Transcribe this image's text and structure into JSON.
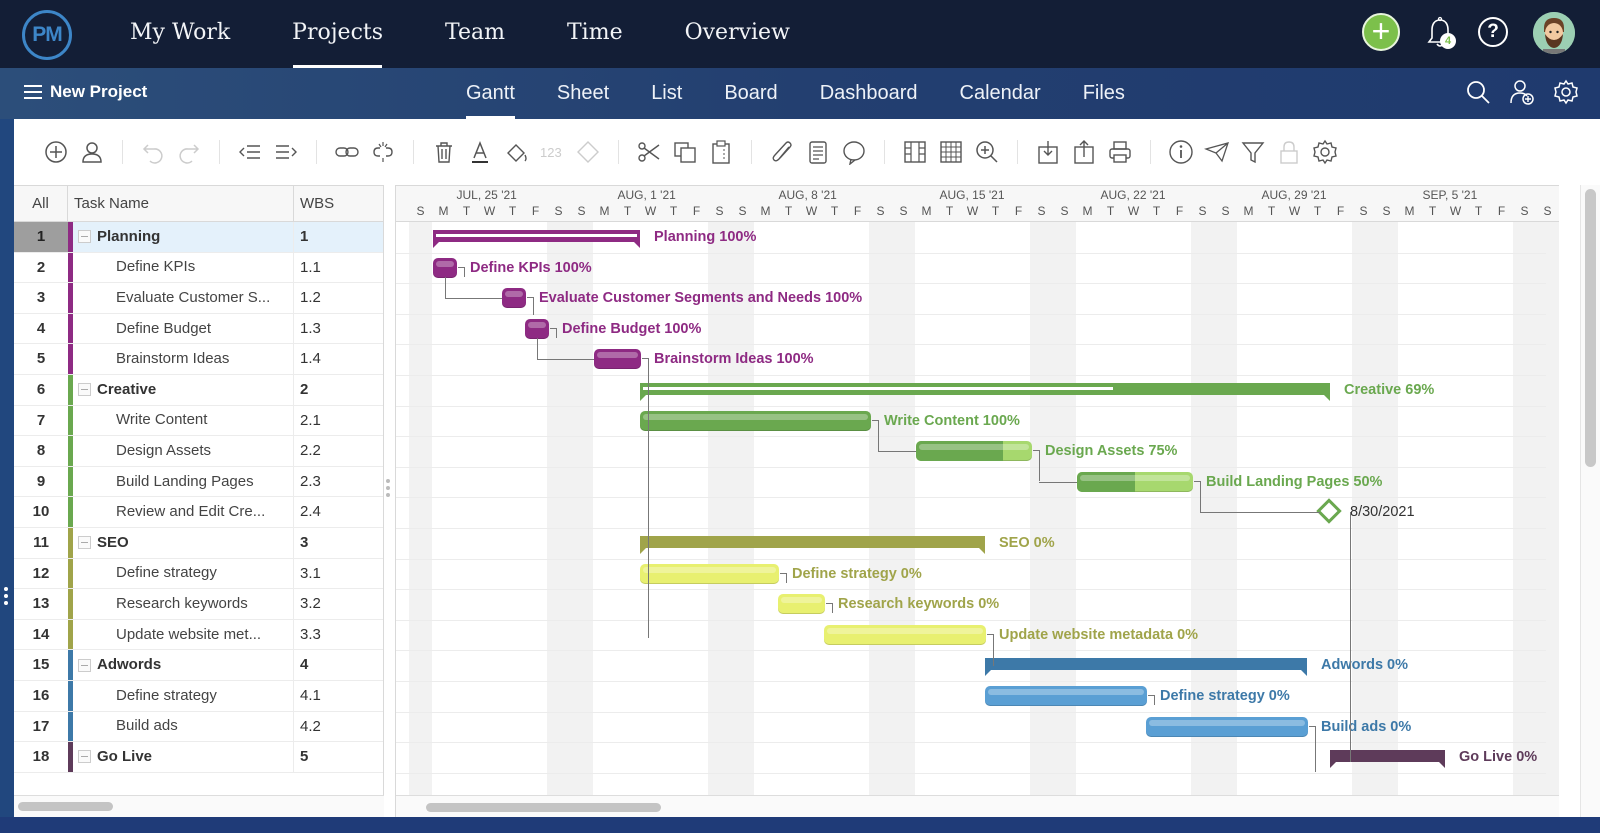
{
  "app": {
    "logo_text": "PM",
    "top_nav": [
      {
        "label": "My Work",
        "active": false
      },
      {
        "label": "Projects",
        "active": true
      },
      {
        "label": "Team",
        "active": false
      },
      {
        "label": "Time",
        "active": false
      },
      {
        "label": "Overview",
        "active": false
      }
    ],
    "notifications_count": "4",
    "help_label": "?",
    "add_label": "+"
  },
  "project": {
    "title": "New Project",
    "view_tabs": [
      {
        "label": "Gantt",
        "active": true
      },
      {
        "label": "Sheet",
        "active": false
      },
      {
        "label": "List",
        "active": false
      },
      {
        "label": "Board",
        "active": false
      },
      {
        "label": "Dashboard",
        "active": false
      },
      {
        "label": "Calendar",
        "active": false
      },
      {
        "label": "Files",
        "active": false
      }
    ],
    "right_icons": [
      "search-icon",
      "add-user-icon",
      "settings-icon"
    ]
  },
  "toolbar": {
    "groups": [
      [
        "add-task-icon",
        "assign-user-icon"
      ],
      [
        "undo-icon",
        "redo-icon"
      ],
      [
        "outdent-icon",
        "indent-icon"
      ],
      [
        "link-icon",
        "unlink-icon"
      ],
      [
        "delete-icon",
        "font-color-icon",
        "fill-color-icon",
        "numbering-icon",
        "milestone-icon"
      ],
      [
        "cut-icon",
        "copy-icon",
        "paste-icon"
      ],
      [
        "attachment-icon",
        "notes-icon",
        "comment-icon"
      ],
      [
        "columns-icon",
        "grid-icon",
        "zoom-icon"
      ],
      [
        "import-icon",
        "export-icon",
        "print-icon"
      ],
      [
        "info-icon",
        "share-icon",
        "filter-icon",
        "lock-icon",
        "gear-icon"
      ]
    ],
    "numbering_label": "123"
  },
  "grid": {
    "headers": {
      "all": "All",
      "task_name": "Task Name",
      "wbs": "WBS"
    },
    "rows": [
      {
        "num": "1",
        "name": "Planning",
        "wbs": "1",
        "summary": true,
        "color": "#8e2a83",
        "selected": true
      },
      {
        "num": "2",
        "name": "Define KPIs",
        "wbs": "1.1",
        "summary": false,
        "color": "#8e2a83"
      },
      {
        "num": "3",
        "name": "Evaluate Customer S...",
        "wbs": "1.2",
        "summary": false,
        "color": "#8e2a83"
      },
      {
        "num": "4",
        "name": "Define Budget",
        "wbs": "1.3",
        "summary": false,
        "color": "#8e2a83"
      },
      {
        "num": "5",
        "name": "Brainstorm Ideas",
        "wbs": "1.4",
        "summary": false,
        "color": "#8e2a83"
      },
      {
        "num": "6",
        "name": "Creative",
        "wbs": "2",
        "summary": true,
        "color": "#6aa84f"
      },
      {
        "num": "7",
        "name": "Write Content",
        "wbs": "2.1",
        "summary": false,
        "color": "#6aa84f"
      },
      {
        "num": "8",
        "name": "Design Assets",
        "wbs": "2.2",
        "summary": false,
        "color": "#6aa84f"
      },
      {
        "num": "9",
        "name": "Build Landing Pages",
        "wbs": "2.3",
        "summary": false,
        "color": "#6aa84f"
      },
      {
        "num": "10",
        "name": "Review and Edit Cre...",
        "wbs": "2.4",
        "summary": false,
        "color": "#6aa84f"
      },
      {
        "num": "11",
        "name": "SEO",
        "wbs": "3",
        "summary": true,
        "color": "#a0a44a"
      },
      {
        "num": "12",
        "name": "Define strategy",
        "wbs": "3.1",
        "summary": false,
        "color": "#a0a44a"
      },
      {
        "num": "13",
        "name": "Research keywords",
        "wbs": "3.2",
        "summary": false,
        "color": "#a0a44a"
      },
      {
        "num": "14",
        "name": "Update website met...",
        "wbs": "3.3",
        "summary": false,
        "color": "#a0a44a"
      },
      {
        "num": "15",
        "name": "Adwords",
        "wbs": "4",
        "summary": true,
        "color": "#3d79a8"
      },
      {
        "num": "16",
        "name": "Define strategy",
        "wbs": "4.1",
        "summary": false,
        "color": "#3d79a8"
      },
      {
        "num": "17",
        "name": "Build ads",
        "wbs": "4.2",
        "summary": false,
        "color": "#3d79a8"
      },
      {
        "num": "18",
        "name": "Go Live",
        "wbs": "5",
        "summary": true,
        "color": "#5e3b5a"
      }
    ]
  },
  "gantt": {
    "weeks": [
      "JUL, 25 '21",
      "AUG, 1 '21",
      "AUG, 8 '21",
      "AUG, 15 '21",
      "AUG, 22 '21",
      "AUG, 29 '21",
      "SEP, 5 '21"
    ],
    "day_letters": [
      "S",
      "M",
      "T",
      "W",
      "T",
      "F",
      "S"
    ],
    "extra_day": "S",
    "bars": [
      {
        "row": 0,
        "type": "summary",
        "start": 1,
        "end": 10,
        "color": "#8e2a83",
        "progress": 100,
        "label": "Planning  100%",
        "label_color": "#8e2a83"
      },
      {
        "row": 1,
        "type": "task",
        "start": 1,
        "end": 2,
        "color": "#8e2a83",
        "done_color": "#8e2a83",
        "progress": 100,
        "label": "Define KPIs  100%",
        "label_color": "#8e2a83"
      },
      {
        "row": 2,
        "type": "task",
        "start": 4,
        "end": 5,
        "color": "#8e2a83",
        "done_color": "#8e2a83",
        "progress": 100,
        "label": "Evaluate Customer Segments and Needs  100%",
        "label_color": "#8e2a83"
      },
      {
        "row": 3,
        "type": "task",
        "start": 5,
        "end": 6,
        "color": "#8e2a83",
        "done_color": "#8e2a83",
        "progress": 100,
        "label": "Define Budget  100%",
        "label_color": "#8e2a83"
      },
      {
        "row": 4,
        "type": "task",
        "start": 8,
        "end": 10,
        "color": "#8e2a83",
        "done_color": "#8e2a83",
        "progress": 100,
        "label": "Brainstorm Ideas  100%",
        "label_color": "#8e2a83"
      },
      {
        "row": 5,
        "type": "summary",
        "start": 10,
        "end": 40,
        "color": "#6aa84f",
        "progress": 69,
        "label": "Creative  69%",
        "label_color": "#6aa84f"
      },
      {
        "row": 6,
        "type": "task",
        "start": 10,
        "end": 20,
        "color": "#6aa84f",
        "done_color": "#6aa84f",
        "progress": 100,
        "label": "Write Content  100%",
        "label_color": "#6aa84f"
      },
      {
        "row": 7,
        "type": "task",
        "start": 22,
        "end": 27,
        "color": "#a7d86e",
        "done_color": "#6aa84f",
        "progress": 75,
        "label": "Design Assets  75%",
        "label_color": "#6aa84f"
      },
      {
        "row": 8,
        "type": "task",
        "start": 29,
        "end": 34,
        "color": "#a7d86e",
        "done_color": "#6aa84f",
        "progress": 50,
        "label": "Build Landing Pages  50%",
        "label_color": "#6aa84f"
      },
      {
        "row": 9,
        "type": "milestone",
        "start": 40,
        "label": "8/30/2021",
        "label_color": "#333333"
      },
      {
        "row": 10,
        "type": "summary",
        "start": 10,
        "end": 25,
        "color": "#a0a44a",
        "progress": 0,
        "label": "SEO  0%",
        "label_color": "#a0a44a"
      },
      {
        "row": 11,
        "type": "task",
        "start": 10,
        "end": 16,
        "color": "#e8f070",
        "done_color": "#e8f070",
        "progress": 0,
        "label": "Define strategy  0%",
        "label_color": "#a0a44a"
      },
      {
        "row": 12,
        "type": "task",
        "start": 16,
        "end": 18,
        "color": "#e8f070",
        "done_color": "#e8f070",
        "progress": 0,
        "label": "Research keywords  0%",
        "label_color": "#a0a44a"
      },
      {
        "row": 13,
        "type": "task",
        "start": 18,
        "end": 25,
        "color": "#e8f070",
        "done_color": "#e8f070",
        "progress": 0,
        "label": "Update website metadata  0%",
        "label_color": "#a0a44a"
      },
      {
        "row": 14,
        "type": "summary",
        "start": 25,
        "end": 39,
        "color": "#3d79a8",
        "progress": 0,
        "label": "Adwords  0%",
        "label_color": "#3d79a8"
      },
      {
        "row": 15,
        "type": "task",
        "start": 25,
        "end": 32,
        "color": "#5a9fd4",
        "done_color": "#5a9fd4",
        "progress": 0,
        "label": "Define strategy  0%",
        "label_color": "#3d79a8"
      },
      {
        "row": 16,
        "type": "task",
        "start": 32,
        "end": 39,
        "color": "#5a9fd4",
        "done_color": "#5a9fd4",
        "progress": 0,
        "label": "Build ads  0%",
        "label_color": "#3d79a8"
      },
      {
        "row": 17,
        "type": "summary",
        "start": 40,
        "end": 45,
        "color": "#5e3b5a",
        "progress": 0,
        "label": "Go Live  0%",
        "label_color": "#5e3b5a"
      }
    ]
  }
}
